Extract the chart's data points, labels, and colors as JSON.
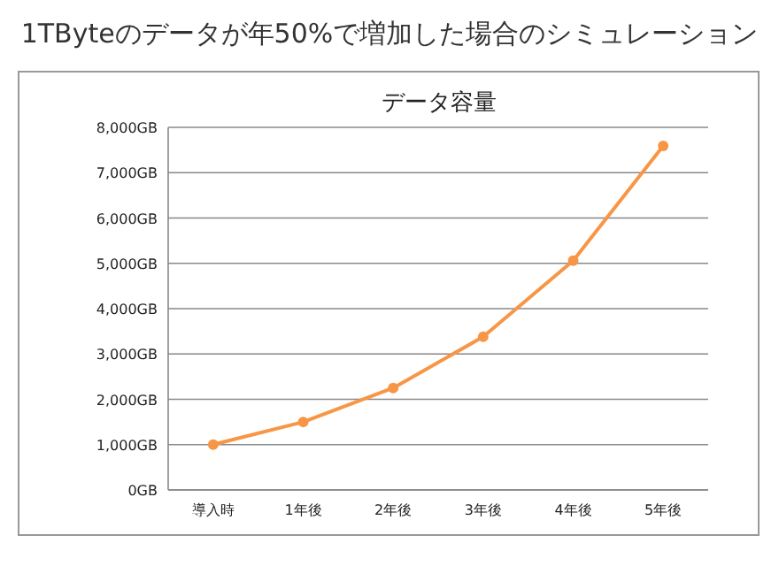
{
  "chart_data": {
    "type": "line",
    "title": "1TByteのデータが年50%で増加した場合のシミュレーション",
    "subtitle": "データ容量",
    "categories": [
      "導入時",
      "1年後",
      "2年後",
      "3年後",
      "4年後",
      "5年後"
    ],
    "series": [
      {
        "color": "#f79646",
        "values": [
          1000,
          1500,
          2250,
          3380,
          5060,
          7590
        ]
      }
    ],
    "ylim": [
      0,
      8000
    ],
    "yticks": [
      {
        "value": 0,
        "label": "0GB"
      },
      {
        "value": 1000,
        "label": "1,000GB"
      },
      {
        "value": 2000,
        "label": "2,000GB"
      },
      {
        "value": 3000,
        "label": "3,000GB"
      },
      {
        "value": 4000,
        "label": "4,000GB"
      },
      {
        "value": 5000,
        "label": "5,000GB"
      },
      {
        "value": 6000,
        "label": "6,000GB"
      },
      {
        "value": 7000,
        "label": "7,000GB"
      },
      {
        "value": 8000,
        "label": "8,000GB"
      }
    ],
    "grid": "y",
    "marker": "circle",
    "line_style": "solid"
  }
}
